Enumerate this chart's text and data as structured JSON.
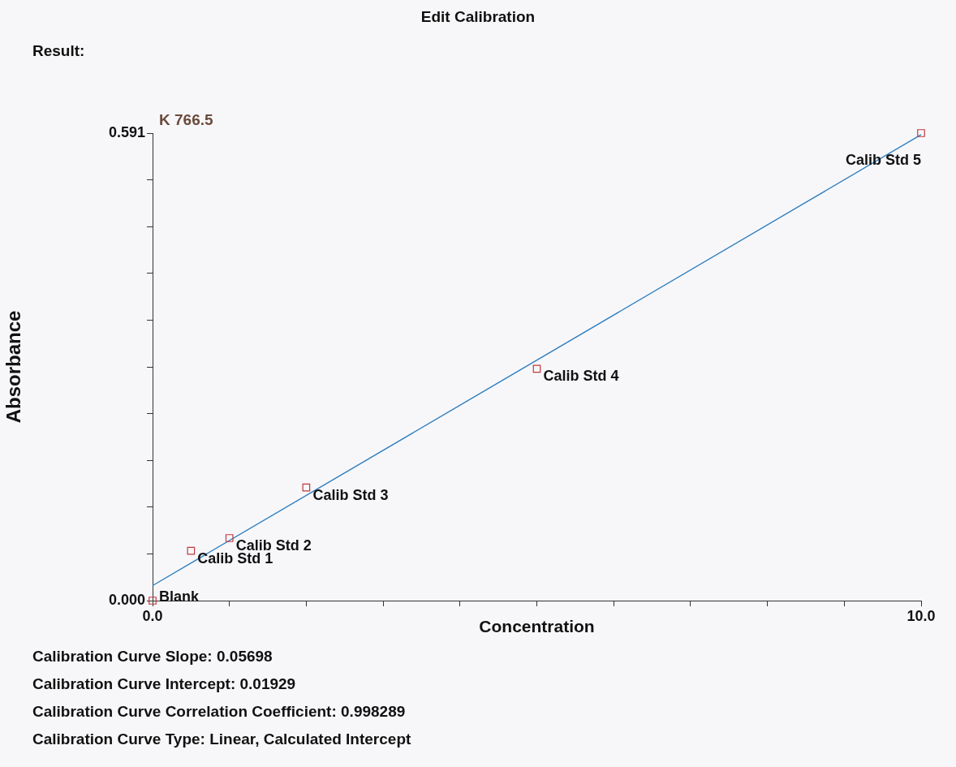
{
  "chart_data": {
    "type": "scatter",
    "title": "Edit Calibration",
    "subtitle": "Result:",
    "xlabel": "Concentration",
    "ylabel": "Absorbance",
    "xlim": [
      0,
      10
    ],
    "ylim": [
      0,
      0.591
    ],
    "xticks": [
      {
        "value": 0,
        "label": "0.0"
      },
      {
        "value": 1,
        "label": null
      },
      {
        "value": 2,
        "label": null
      },
      {
        "value": 3,
        "label": null
      },
      {
        "value": 4,
        "label": null
      },
      {
        "value": 5,
        "label": null
      },
      {
        "value": 6,
        "label": null
      },
      {
        "value": 7,
        "label": null
      },
      {
        "value": 8,
        "label": null
      },
      {
        "value": 9,
        "label": null
      },
      {
        "value": 10,
        "label": "10.0"
      }
    ],
    "yticks": [
      {
        "value": 0,
        "label": "0.000"
      },
      {
        "value": 0.0591,
        "label": null
      },
      {
        "value": 0.1182,
        "label": null
      },
      {
        "value": 0.1773,
        "label": null
      },
      {
        "value": 0.2364,
        "label": null
      },
      {
        "value": 0.2955,
        "label": null
      },
      {
        "value": 0.3546,
        "label": null
      },
      {
        "value": 0.4137,
        "label": null
      },
      {
        "value": 0.4728,
        "label": null
      },
      {
        "value": 0.5319,
        "label": null
      },
      {
        "value": 0.591,
        "label": "0.591"
      }
    ],
    "grid": false,
    "legend": false,
    "series": [
      {
        "type": "scatter",
        "color": "#c0393b",
        "marker": "square",
        "x": [
          0,
          0.5,
          1,
          2,
          5,
          10
        ],
        "values": [
          0,
          0.063,
          0.079,
          0.143,
          0.293,
          0.591
        ]
      },
      {
        "type": "line",
        "color": "#2f7fbf",
        "marker": "none",
        "line_style": "solid",
        "x": [
          0,
          10
        ],
        "values": [
          0.019,
          0.589
        ]
      }
    ],
    "annotations": [
      "K 766.5",
      {
        "text": "Blank",
        "x": 0,
        "y": 0
      },
      {
        "text": "Calib Std 1",
        "x": 0.5,
        "y": 0.063
      },
      {
        "text": "Calib Std 2",
        "x": 1,
        "y": 0.079
      },
      {
        "text": "Calib Std 3",
        "x": 2,
        "y": 0.143
      },
      {
        "text": "Calib Std 4",
        "x": 5,
        "y": 0.293
      },
      {
        "text": "Calib Std 5",
        "x": 10,
        "y": 0.591
      },
      "Calibration Curve Slope:  0.05698",
      "Calibration Curve Intercept:  0.01929",
      "Calibration Curve Correlation Coefficient:  0.998289",
      "Calibration Curve Type:  Linear, Calculated Intercept"
    ]
  }
}
